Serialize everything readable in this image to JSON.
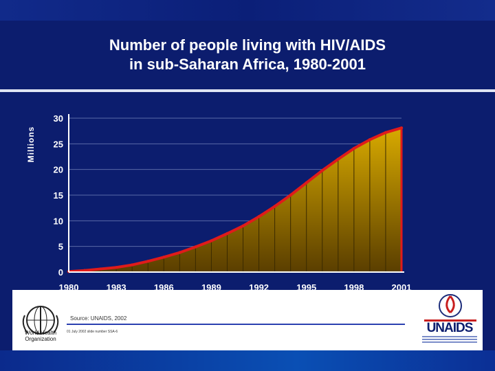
{
  "slide": {
    "title_line1": "Number of people living with HIV/AIDS",
    "title_line2": "in sub-Saharan Africa, 1980-2001",
    "source": "Source:  UNAIDS, 2002",
    "slide_ref": "01 July 2002 slide number SSA-6",
    "who_label": "World Health Organization",
    "unaids_label": "UNAIDS"
  },
  "colors": {
    "background": "#0c1d6e",
    "line": "#e01b1b",
    "area_top": "#d8aa00",
    "area_bottom": "#5a3e00",
    "axis_text": "#ffffff"
  },
  "chart_data": {
    "type": "area",
    "title": "Number of people living with HIV/AIDS in sub-Saharan Africa, 1980-2001",
    "xlabel": "",
    "ylabel": "Millions",
    "x": [
      1980,
      1981,
      1982,
      1983,
      1984,
      1985,
      1986,
      1987,
      1988,
      1989,
      1990,
      1991,
      1992,
      1993,
      1994,
      1995,
      1996,
      1997,
      1998,
      1999,
      2000,
      2001
    ],
    "values": [
      0.1,
      0.3,
      0.6,
      0.9,
      1.4,
      2.1,
      2.9,
      3.8,
      4.9,
      6.1,
      7.5,
      9.0,
      10.8,
      12.8,
      15.0,
      17.4,
      19.8,
      22.0,
      24.1,
      25.8,
      27.2,
      28.1
    ],
    "xticks": [
      "1980",
      "1983",
      "1986",
      "1989",
      "1992",
      "1995",
      "1998",
      "2001"
    ],
    "yticks": [
      "0",
      "5",
      "10",
      "15",
      "20",
      "25",
      "30"
    ],
    "ylim": [
      0,
      30
    ],
    "xlim": [
      1980,
      2001
    ],
    "grid": true
  }
}
